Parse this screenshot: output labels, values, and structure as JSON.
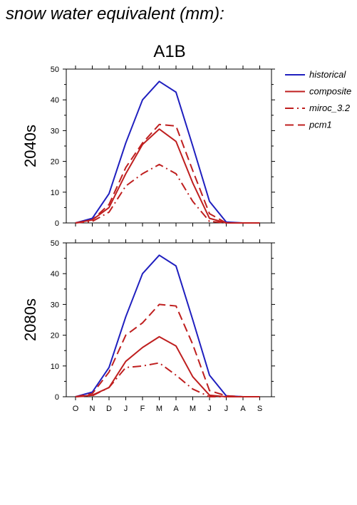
{
  "page_title": "snow water equivalent (mm):",
  "chart_data": {
    "type": "line",
    "scenario": "A1B",
    "categories": [
      "O",
      "N",
      "D",
      "J",
      "F",
      "M",
      "A",
      "M",
      "J",
      "J",
      "A",
      "S"
    ],
    "ylim": [
      0,
      50
    ],
    "yticks": [
      0,
      10,
      20,
      30,
      40,
      50
    ],
    "legend": [
      {
        "name": "historical",
        "color": "#1f1fbf",
        "dash": "solid"
      },
      {
        "name": "composite",
        "color": "#bf1f1f",
        "dash": "solid"
      },
      {
        "name": "miroc_3.2",
        "color": "#bf1f1f",
        "dash": "dashdot"
      },
      {
        "name": "pcm1",
        "color": "#bf1f1f",
        "dash": "dashed"
      }
    ],
    "panels": [
      {
        "label": "2040s",
        "series": [
          {
            "name": "historical",
            "values": [
              0,
              1.5,
              9.5,
              26,
              40,
              46,
              42.5,
              25,
              7,
              0.3,
              0,
              0
            ]
          },
          {
            "name": "composite",
            "values": [
              0,
              1,
              5,
              16,
              25.5,
              30.5,
              26.5,
              13,
              1.5,
              0,
              0,
              0
            ]
          },
          {
            "name": "miroc_3.2",
            "values": [
              0,
              0.5,
              3.5,
              12,
              16,
              19,
              16,
              7,
              0.5,
              0,
              0,
              0
            ]
          },
          {
            "name": "pcm1",
            "values": [
              0,
              1,
              6,
              18,
              26,
              32,
              31.5,
              17,
              3,
              0,
              0,
              0
            ]
          }
        ]
      },
      {
        "label": "2080s",
        "series": [
          {
            "name": "historical",
            "values": [
              0,
              1.5,
              9.5,
              26,
              40,
              46,
              42.5,
              25,
              7,
              0.3,
              0,
              0
            ]
          },
          {
            "name": "composite",
            "values": [
              0,
              0.5,
              3,
              11.5,
              16,
              19.5,
              16.5,
              6.5,
              0.5,
              0,
              0,
              0
            ]
          },
          {
            "name": "miroc_3.2",
            "values": [
              0,
              0.3,
              3,
              9.5,
              10,
              11,
              7,
              2.5,
              0,
              0,
              0,
              0
            ]
          },
          {
            "name": "pcm1",
            "values": [
              0,
              1,
              8,
              20,
              24,
              30,
              29.5,
              17,
              2,
              0.3,
              0,
              0
            ]
          }
        ]
      }
    ]
  }
}
